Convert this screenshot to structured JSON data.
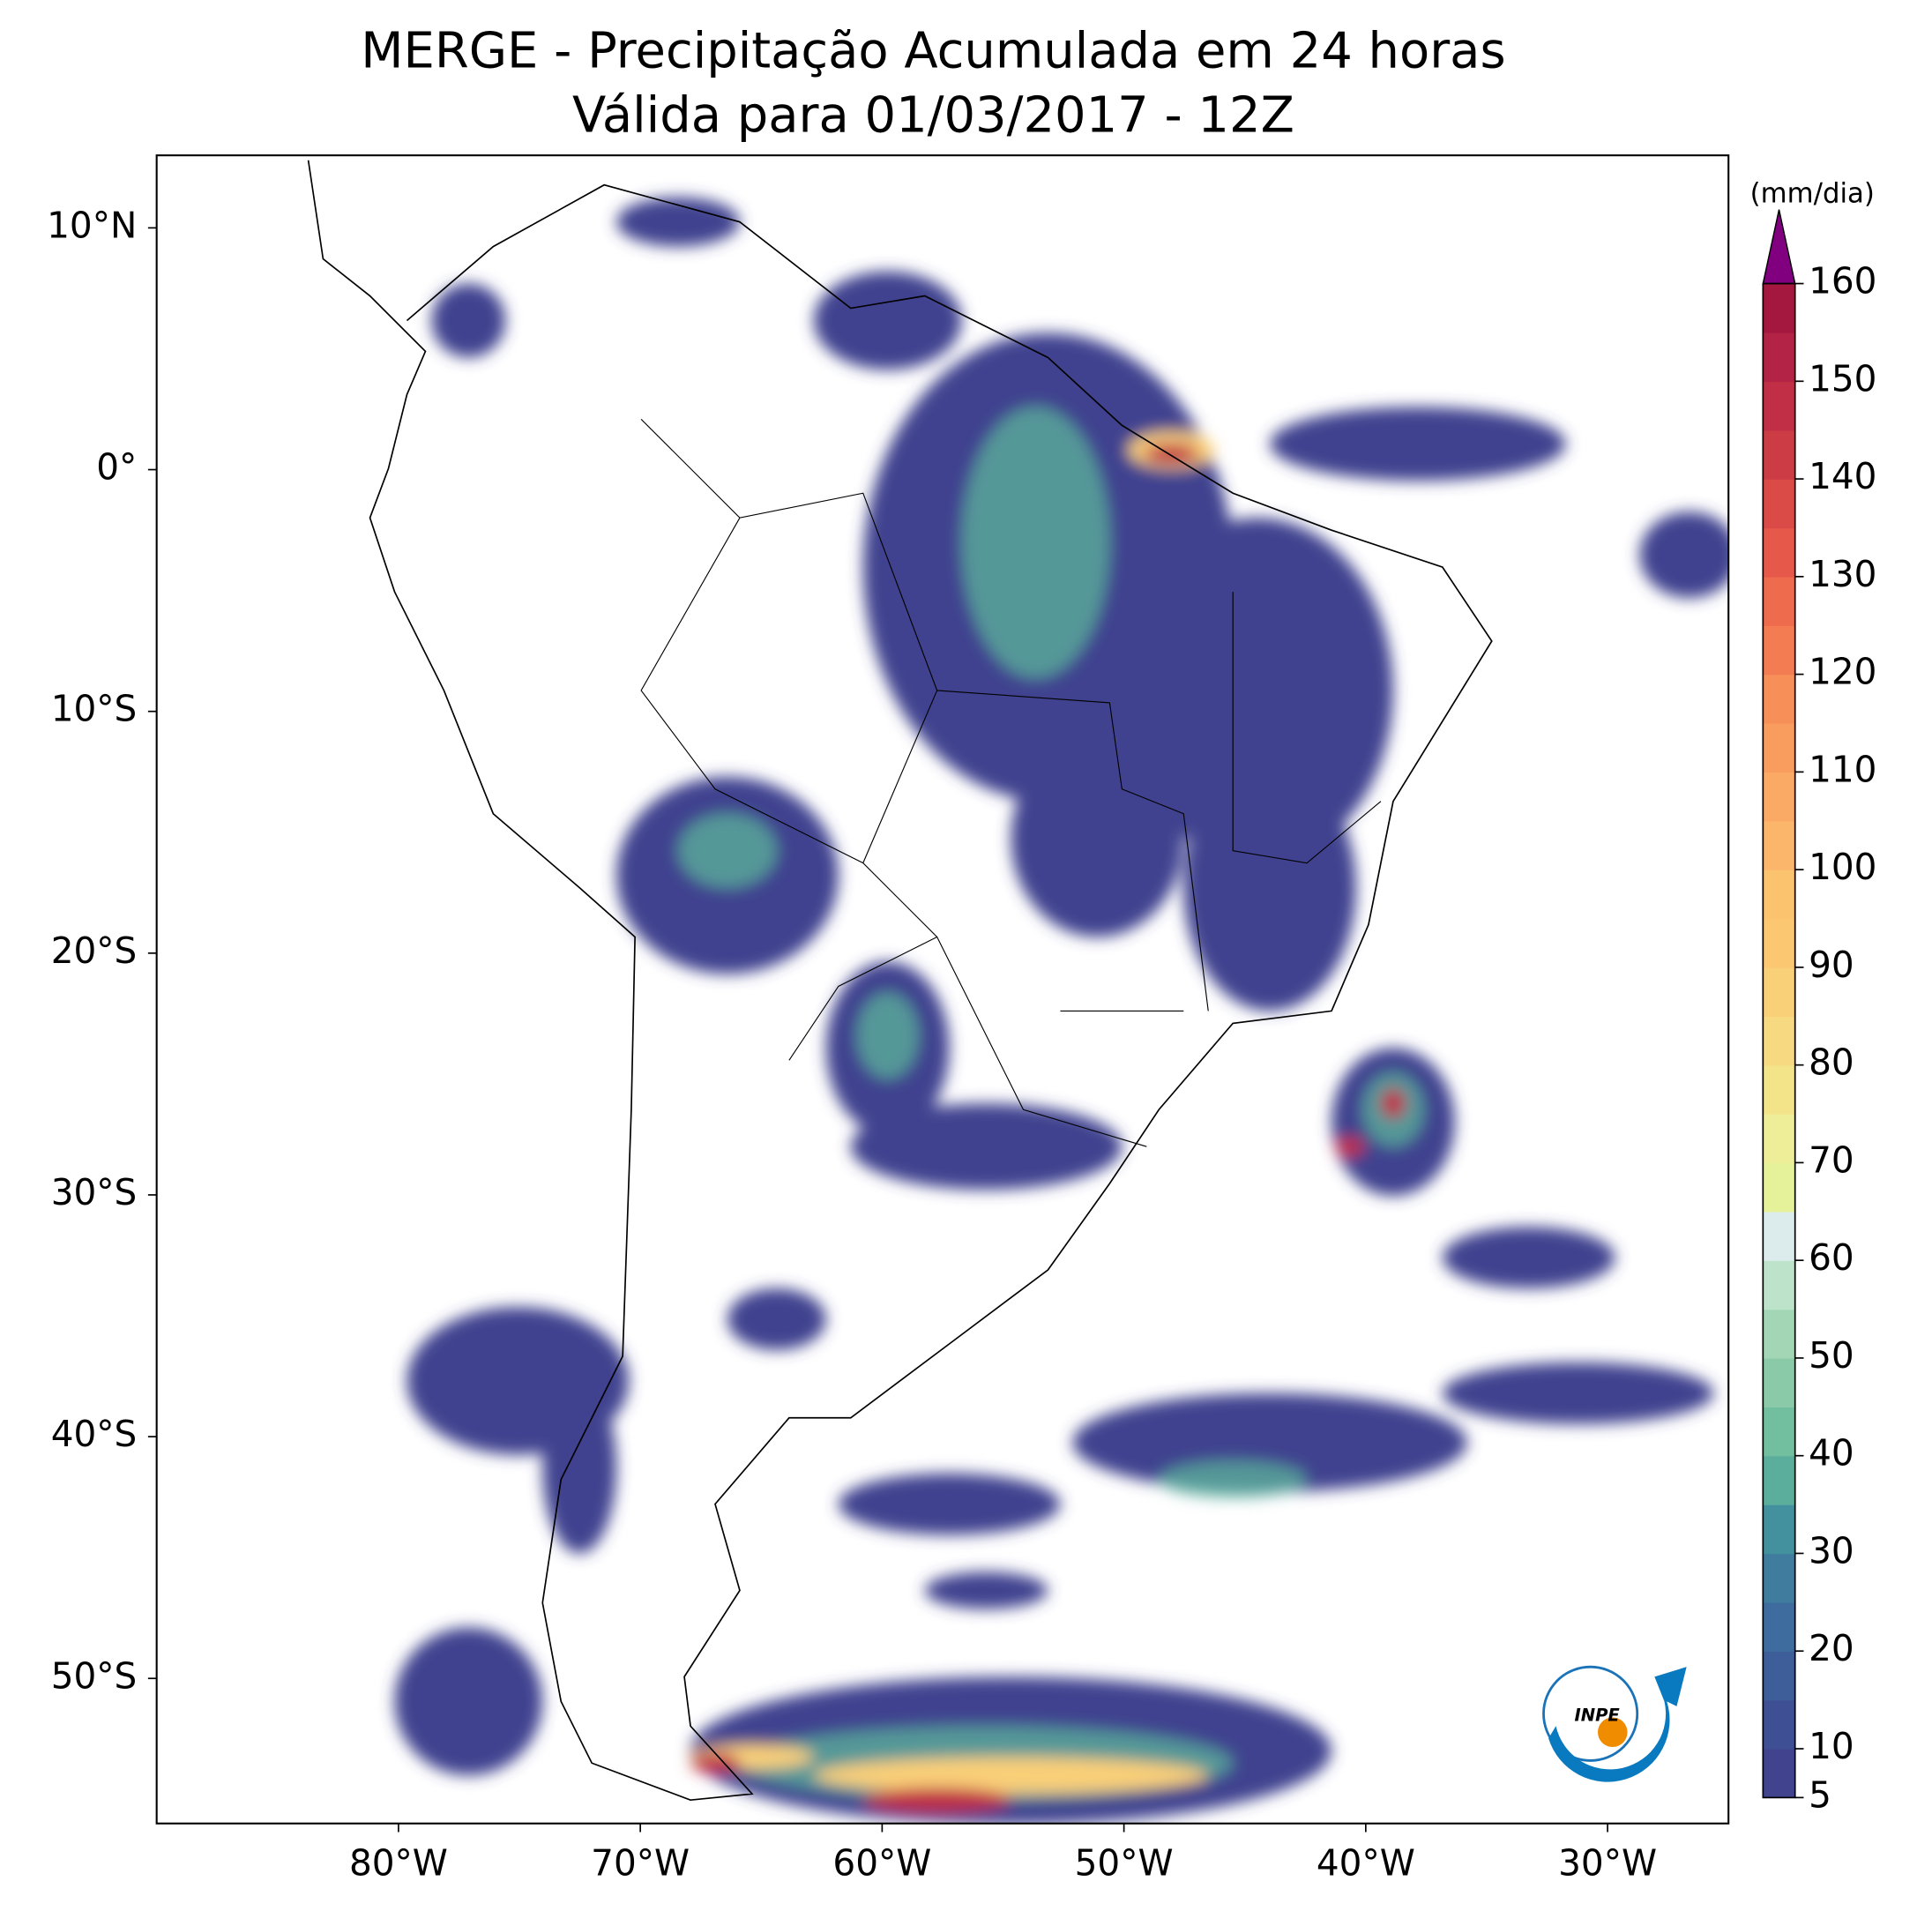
{
  "title": "MERGE - Precipitação Acumulada em 24 horas",
  "subtitle": "Válida para 01/03/2017 - 12Z",
  "map": {
    "xlim": [
      -90,
      -25
    ],
    "ylim": [
      -56,
      13
    ],
    "xticks": [
      {
        "value": -80,
        "label": "80°W"
      },
      {
        "value": -70,
        "label": "70°W"
      },
      {
        "value": -60,
        "label": "60°W"
      },
      {
        "value": -50,
        "label": "50°W"
      },
      {
        "value": -40,
        "label": "40°W"
      },
      {
        "value": -30,
        "label": "30°W"
      }
    ],
    "yticks": [
      {
        "value": 10,
        "label": "10°N"
      },
      {
        "value": 0,
        "label": "0°"
      },
      {
        "value": -10,
        "label": "10°S"
      },
      {
        "value": -20,
        "label": "20°S"
      },
      {
        "value": -30,
        "label": "30°S"
      },
      {
        "value": -40,
        "label": "40°S"
      },
      {
        "value": -50,
        "label": "50°S"
      }
    ]
  },
  "colorbar": {
    "label": "(mm/dia)",
    "lim": [
      5,
      160
    ],
    "ticks": [
      5,
      10,
      20,
      30,
      40,
      50,
      60,
      70,
      80,
      90,
      100,
      110,
      120,
      130,
      140,
      150,
      160
    ],
    "colors": [
      "#41438f",
      "#3f4f93",
      "#3e5e9a",
      "#3f6c9f",
      "#3f7c9e",
      "#43909e",
      "#5aae9b",
      "#72bfa0",
      "#8acaa8",
      "#a2d6b5",
      "#bde3cb",
      "#dcecec",
      "#e6f29a",
      "#eeee99",
      "#f3e48a",
      "#f7d981",
      "#f9cf78",
      "#fbc771",
      "#fcc36e",
      "#fcb66c",
      "#fbaa65",
      "#f99d5e",
      "#f79058",
      "#f47c52",
      "#ef6b4d",
      "#e6594a",
      "#da4a47",
      "#cc3c45",
      "#c02f45",
      "#b22345",
      "#a4173f"
    ],
    "extend_color": "#800080"
  },
  "logo": "INPE"
}
